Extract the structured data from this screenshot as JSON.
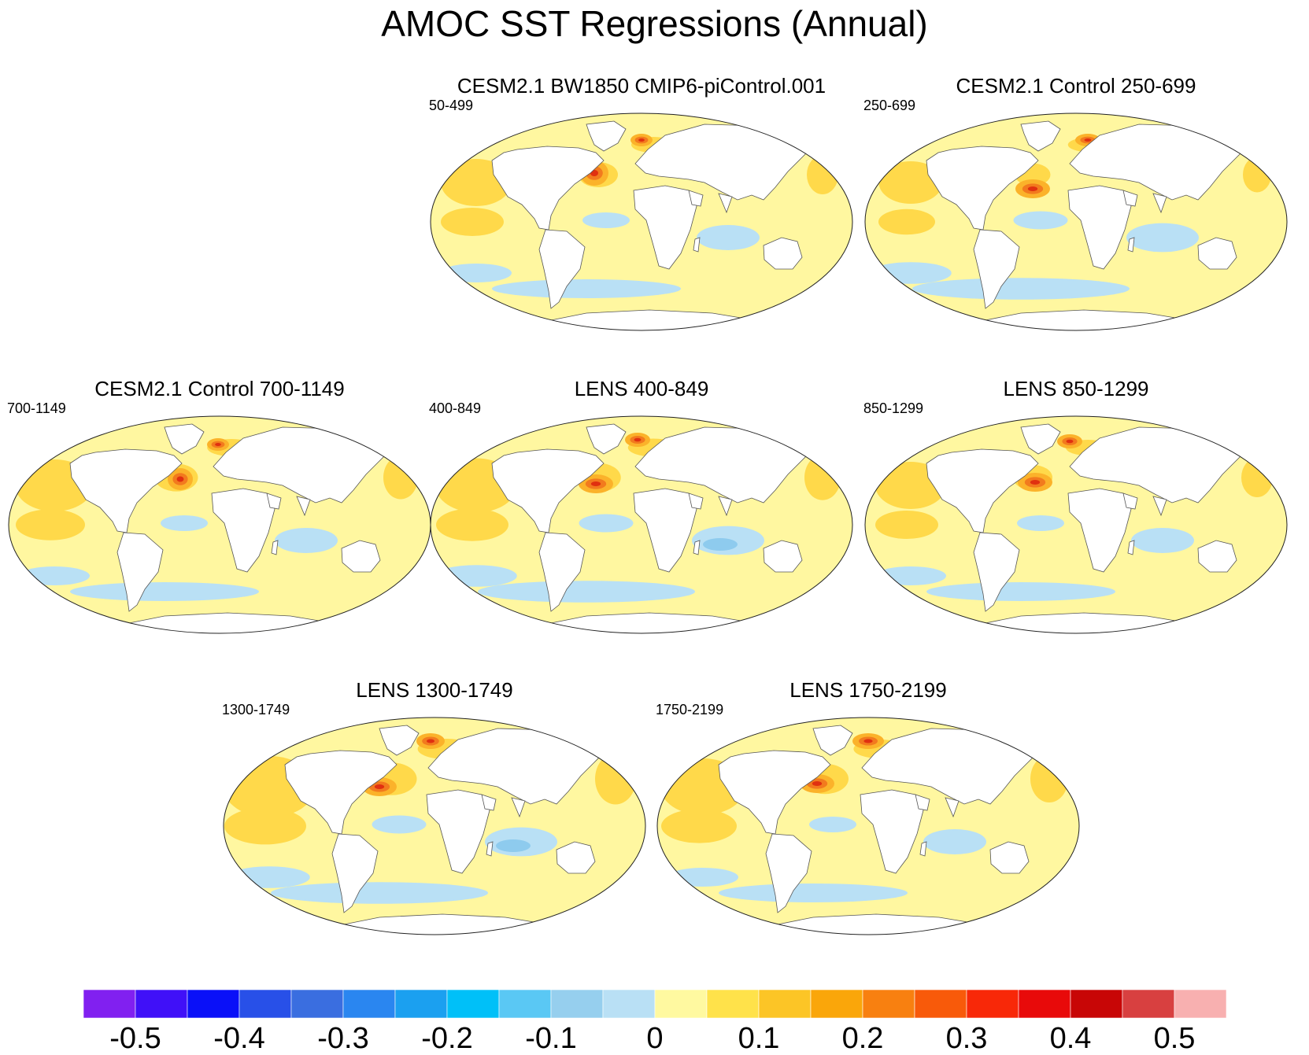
{
  "title": "AMOC SST Regressions (Annual)",
  "panels": [
    {
      "title": "CESM2.1 BW1850 CMIP6-piControl.001",
      "years": "50-499"
    },
    {
      "title": "CESM2.1 Control 250-699",
      "years": "250-699"
    },
    {
      "title": "CESM2.1 Control 700-1149",
      "years": "700-1149"
    },
    {
      "title": "LENS 400-849",
      "years": "400-849"
    },
    {
      "title": "LENS 850-1299",
      "years": "850-1299"
    },
    {
      "title": "LENS 1300-1749",
      "years": "1300-1749"
    },
    {
      "title": "LENS 1750-2199",
      "years": "1750-2199"
    }
  ],
  "colorbar": {
    "colors": [
      "#8120f0",
      "#4010f8",
      "#0a10f8",
      "#2850e8",
      "#3a6ee0",
      "#2a86f0",
      "#1ba0f0",
      "#00c0f8",
      "#5ac8f4",
      "#96cfee",
      "#b9e0f5",
      "#fff9a0",
      "#ffe24a",
      "#fcc526",
      "#faa60a",
      "#f88010",
      "#f85a0a",
      "#f82808",
      "#e80a0a",
      "#c80606",
      "#d84040",
      "#f8b0b0"
    ],
    "labels": [
      "-0.5",
      "-0.4",
      "-0.3",
      "-0.2",
      "-0.1",
      "0",
      "0.1",
      "0.2",
      "0.3",
      "0.4",
      "0.5"
    ]
  },
  "colors": {
    "land": "#ffffff",
    "neutral_warm": "#fff7a0",
    "weak_warm": "#ffd94a",
    "moderate_warm": "#fbb22a",
    "strong_warm": "#f27a1e",
    "hot": "#e03010",
    "weak_cool": "#b9e0f5",
    "moderate_cool": "#8ecbee",
    "strong_cool": "#4aa8e8"
  }
}
